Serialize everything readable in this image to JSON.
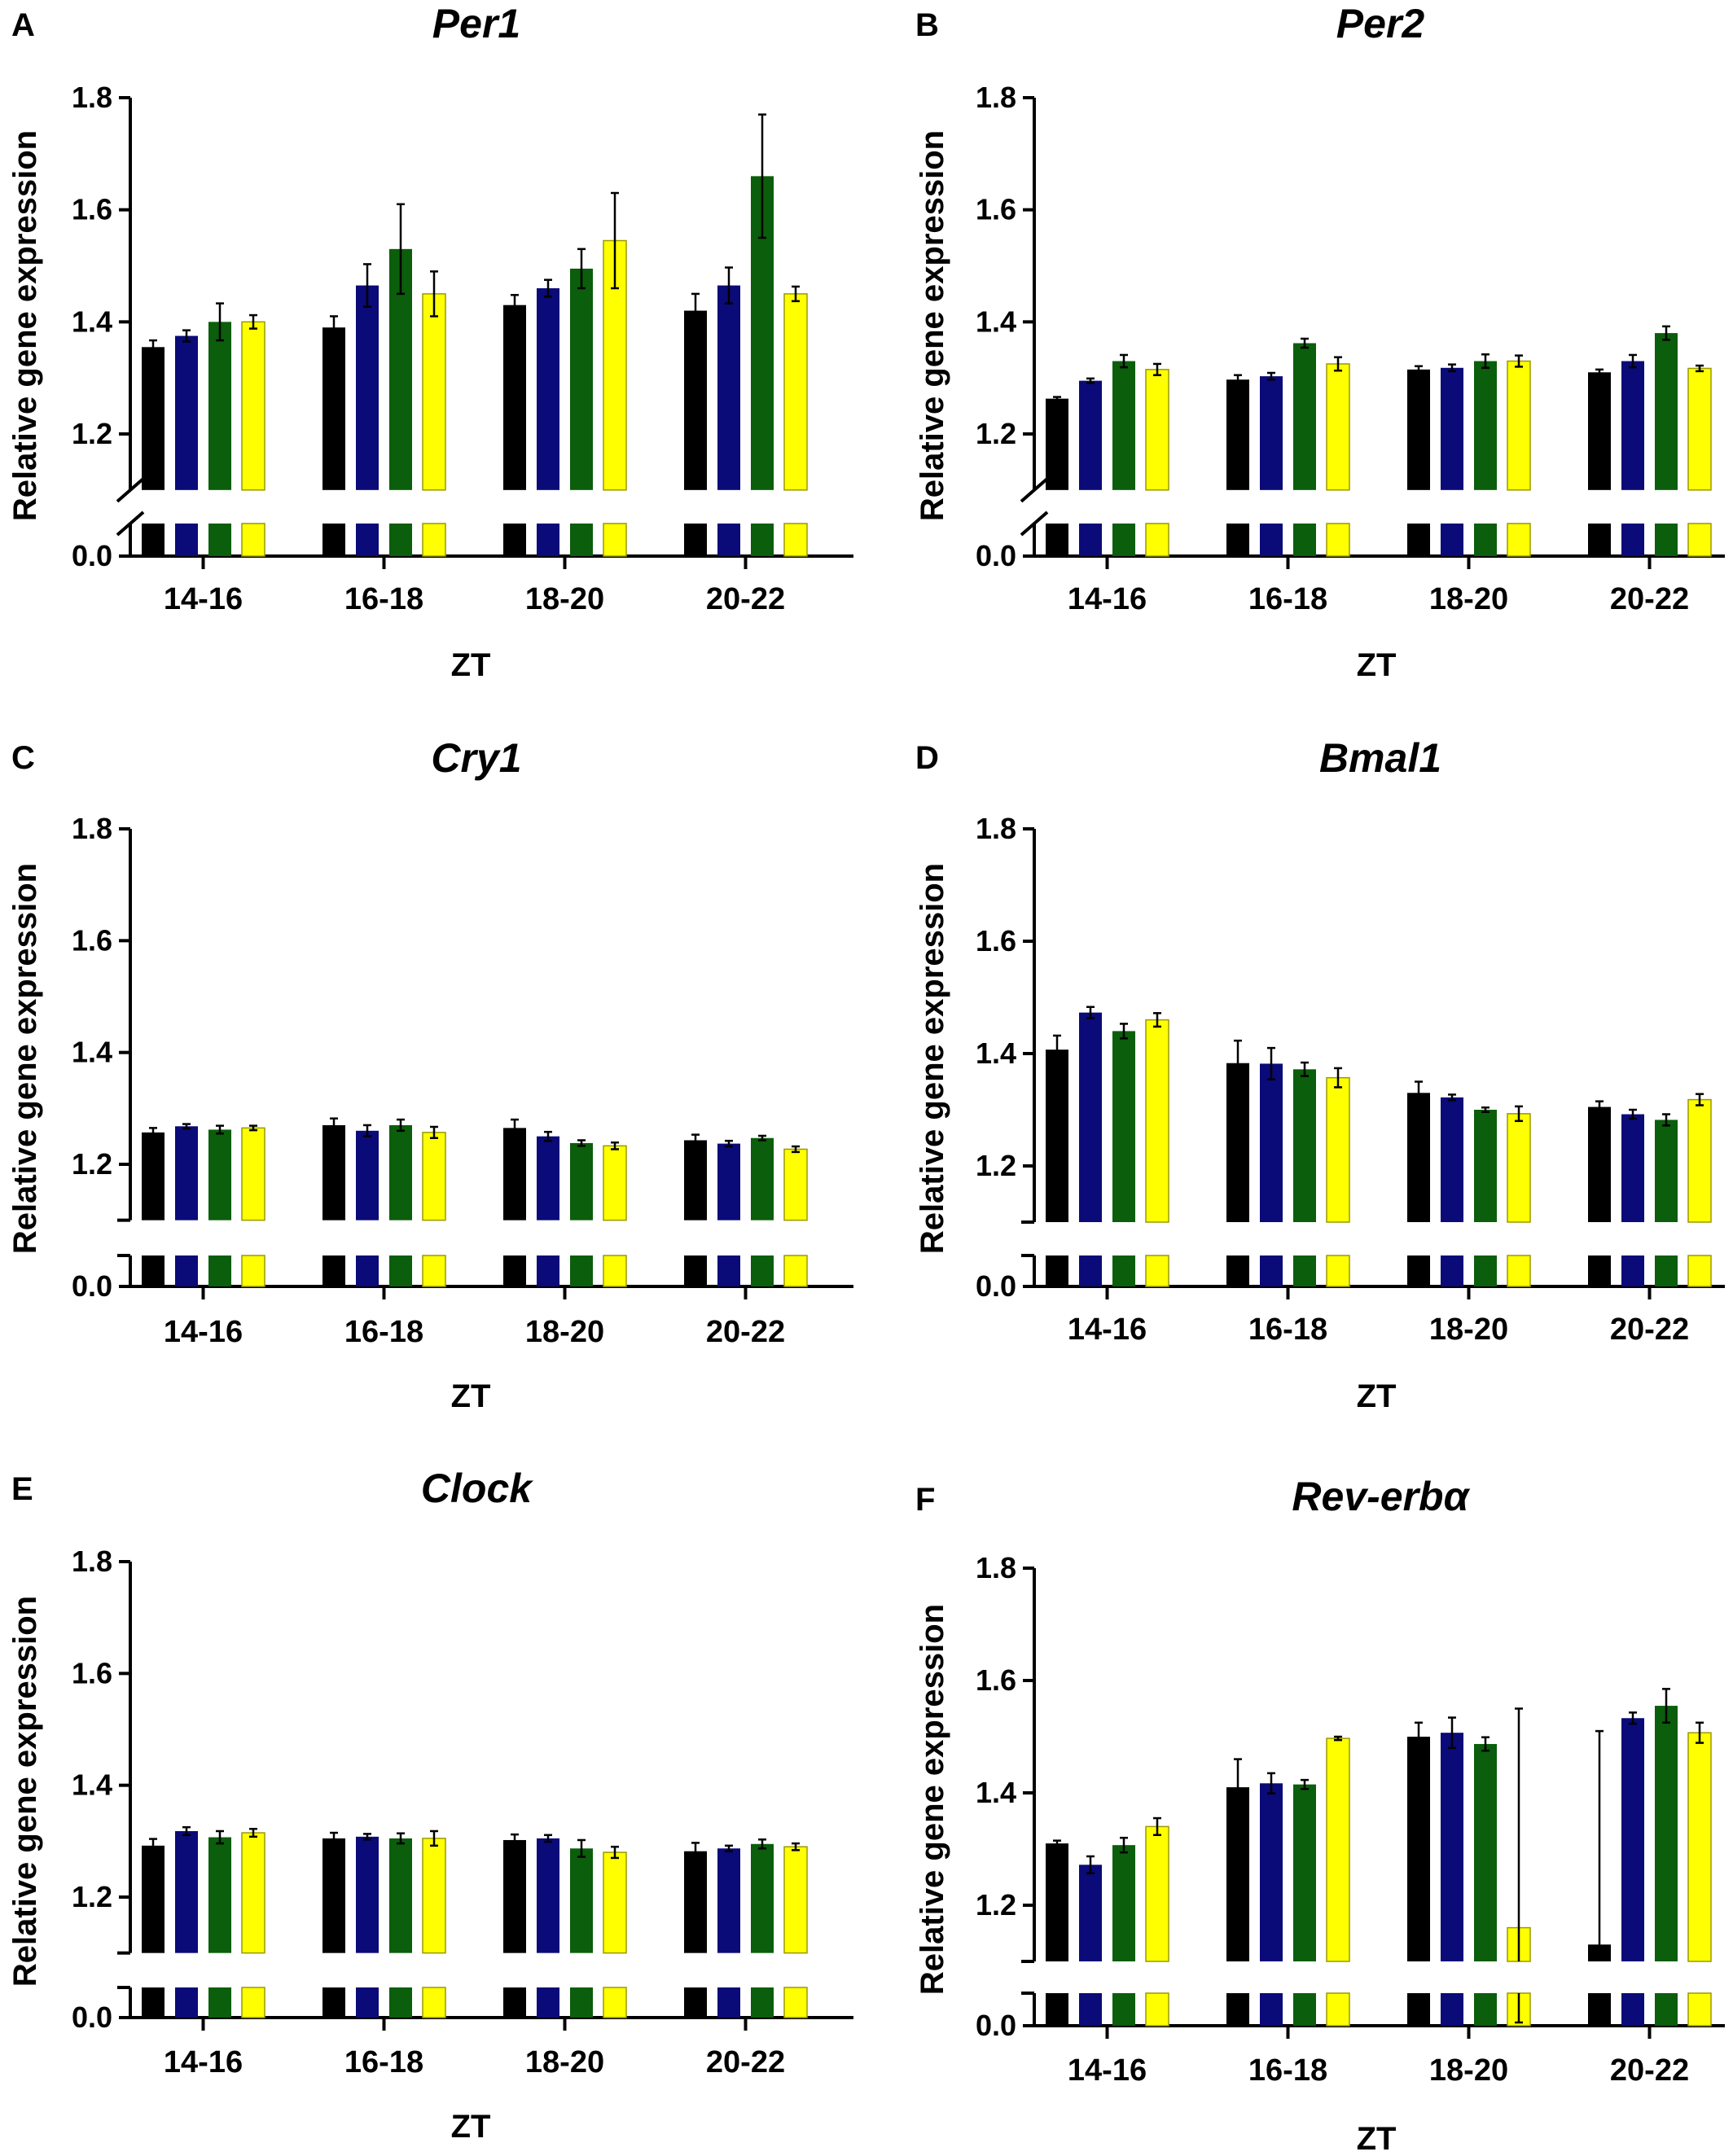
{
  "colors": {
    "black": "#000000",
    "navy": "#0a0a78",
    "green": "#0b5e0b",
    "yellow": "#ffff00"
  },
  "chart_data": [
    {
      "type": "bar",
      "panel": "A",
      "title": "Per1",
      "xlabel": "ZT",
      "ylabel": "Relative gene expression",
      "categories": [
        "14-16",
        "16-18",
        "18-20",
        "20-22"
      ],
      "yticks": [
        "0.0",
        "1.2",
        "1.4",
        "1.6",
        "1.8"
      ],
      "ylim": [
        1.1,
        1.8
      ],
      "axis_break": true,
      "series": [
        {
          "color": "#000000",
          "values": [
            1.355,
            1.39,
            1.43,
            1.42
          ],
          "errors": [
            0.012,
            0.02,
            0.018,
            0.03
          ]
        },
        {
          "color": "#0a0a78",
          "values": [
            1.375,
            1.465,
            1.46,
            1.465
          ],
          "errors": [
            0.01,
            0.038,
            0.015,
            0.032
          ]
        },
        {
          "color": "#0b5e0b",
          "values": [
            1.4,
            1.53,
            1.495,
            1.66
          ],
          "errors": [
            0.033,
            0.08,
            0.035,
            0.11
          ]
        },
        {
          "color": "#ffff00",
          "values": [
            1.4,
            1.45,
            1.545,
            1.45
          ],
          "errors": [
            0.012,
            0.04,
            0.085,
            0.013
          ]
        }
      ]
    },
    {
      "type": "bar",
      "panel": "B",
      "title": "Per2",
      "xlabel": "ZT",
      "ylabel": "Relative gene expression",
      "categories": [
        "14-16",
        "16-18",
        "18-20",
        "20-22"
      ],
      "yticks": [
        "0.0",
        "1.2",
        "1.4",
        "1.6",
        "1.8"
      ],
      "ylim": [
        1.1,
        1.8
      ],
      "axis_break": true,
      "series": [
        {
          "color": "#000000",
          "values": [
            1.263,
            1.297,
            1.315,
            1.31
          ],
          "errors": [
            0.003,
            0.008,
            0.006,
            0.005
          ]
        },
        {
          "color": "#0a0a78",
          "values": [
            1.295,
            1.303,
            1.318,
            1.33
          ],
          "errors": [
            0.004,
            0.006,
            0.006,
            0.011
          ]
        },
        {
          "color": "#0b5e0b",
          "values": [
            1.33,
            1.362,
            1.33,
            1.38
          ],
          "errors": [
            0.011,
            0.008,
            0.012,
            0.012
          ]
        },
        {
          "color": "#ffff00",
          "values": [
            1.315,
            1.325,
            1.33,
            1.317
          ],
          "errors": [
            0.01,
            0.012,
            0.01,
            0.005
          ]
        }
      ]
    },
    {
      "type": "bar",
      "panel": "C",
      "title": "Cry1",
      "xlabel": "ZT",
      "ylabel": "Relative gene expression",
      "categories": [
        "14-16",
        "16-18",
        "18-20",
        "20-22"
      ],
      "yticks": [
        "0.0",
        "1.2",
        "1.4",
        "1.6",
        "1.8"
      ],
      "ylim": [
        1.1,
        1.8
      ],
      "axis_break": true,
      "series": [
        {
          "color": "#000000",
          "values": [
            1.257,
            1.27,
            1.265,
            1.243
          ],
          "errors": [
            0.008,
            0.012,
            0.015,
            0.01
          ]
        },
        {
          "color": "#0a0a78",
          "values": [
            1.268,
            1.26,
            1.25,
            1.237
          ],
          "errors": [
            0.004,
            0.01,
            0.008,
            0.005
          ]
        },
        {
          "color": "#0b5e0b",
          "values": [
            1.262,
            1.27,
            1.238,
            1.247
          ],
          "errors": [
            0.007,
            0.01,
            0.005,
            0.004
          ]
        },
        {
          "color": "#ffff00",
          "values": [
            1.265,
            1.257,
            1.233,
            1.227
          ],
          "errors": [
            0.004,
            0.01,
            0.006,
            0.005
          ]
        }
      ]
    },
    {
      "type": "bar",
      "panel": "D",
      "title": "Bmal1",
      "xlabel": "ZT",
      "ylabel": "Relative gene expression",
      "categories": [
        "14-16",
        "16-18",
        "18-20",
        "20-22"
      ],
      "yticks": [
        "0.0",
        "1.2",
        "1.4",
        "1.6",
        "1.8"
      ],
      "ylim": [
        1.1,
        1.8
      ],
      "axis_break": true,
      "series": [
        {
          "color": "#000000",
          "values": [
            1.407,
            1.383,
            1.33,
            1.305
          ],
          "errors": [
            0.025,
            0.04,
            0.02,
            0.01
          ]
        },
        {
          "color": "#0a0a78",
          "values": [
            1.473,
            1.382,
            1.322,
            1.292
          ],
          "errors": [
            0.01,
            0.028,
            0.005,
            0.008
          ]
        },
        {
          "color": "#0b5e0b",
          "values": [
            1.44,
            1.372,
            1.3,
            1.282
          ],
          "errors": [
            0.013,
            0.012,
            0.004,
            0.01
          ]
        },
        {
          "color": "#ffff00",
          "values": [
            1.46,
            1.357,
            1.293,
            1.318
          ],
          "errors": [
            0.012,
            0.017,
            0.013,
            0.01
          ]
        }
      ]
    },
    {
      "type": "bar",
      "panel": "E",
      "title": "Clock",
      "xlabel": "ZT",
      "ylabel": "Relative gene expression",
      "categories": [
        "14-16",
        "16-18",
        "18-20",
        "20-22"
      ],
      "yticks": [
        "0.0",
        "1.2",
        "1.4",
        "1.6",
        "1.8"
      ],
      "ylim": [
        1.1,
        1.8
      ],
      "axis_break": true,
      "series": [
        {
          "color": "#000000",
          "values": [
            1.292,
            1.305,
            1.302,
            1.282
          ],
          "errors": [
            0.012,
            0.01,
            0.01,
            0.015
          ]
        },
        {
          "color": "#0a0a78",
          "values": [
            1.318,
            1.308,
            1.305,
            1.287
          ],
          "errors": [
            0.007,
            0.005,
            0.006,
            0.005
          ]
        },
        {
          "color": "#0b5e0b",
          "values": [
            1.307,
            1.305,
            1.287,
            1.295
          ],
          "errors": [
            0.011,
            0.009,
            0.015,
            0.008
          ]
        },
        {
          "color": "#ffff00",
          "values": [
            1.315,
            1.305,
            1.28,
            1.29
          ],
          "errors": [
            0.007,
            0.013,
            0.01,
            0.006
          ]
        }
      ]
    },
    {
      "type": "bar",
      "panel": "F",
      "title": "Rev-erbα",
      "xlabel": "ZT",
      "ylabel": "Relative gene expression",
      "categories": [
        "14-16",
        "16-18",
        "18-20",
        "20-22"
      ],
      "yticks": [
        "0.0",
        "1.2",
        "1.4",
        "1.6",
        "1.8"
      ],
      "ylim": [
        1.1,
        1.8
      ],
      "axis_break": true,
      "series": [
        {
          "color": "#000000",
          "values": [
            1.31,
            1.41,
            1.5,
            1.13
          ],
          "errors": [
            0.005,
            0.05,
            0.025,
            0.38
          ]
        },
        {
          "color": "#0a0a78",
          "values": [
            1.272,
            1.417,
            1.507,
            1.533
          ],
          "errors": [
            0.015,
            0.018,
            0.027,
            0.01
          ]
        },
        {
          "color": "#0b5e0b",
          "values": [
            1.307,
            1.415,
            1.487,
            1.555
          ],
          "errors": [
            0.013,
            0.008,
            0.012,
            0.03
          ]
        },
        {
          "color": "#ffff00",
          "values": [
            1.34,
            1.497,
            1.16,
            1.507
          ],
          "errors": [
            0.015,
            0.003,
            0.39,
            0.018
          ]
        }
      ]
    }
  ]
}
